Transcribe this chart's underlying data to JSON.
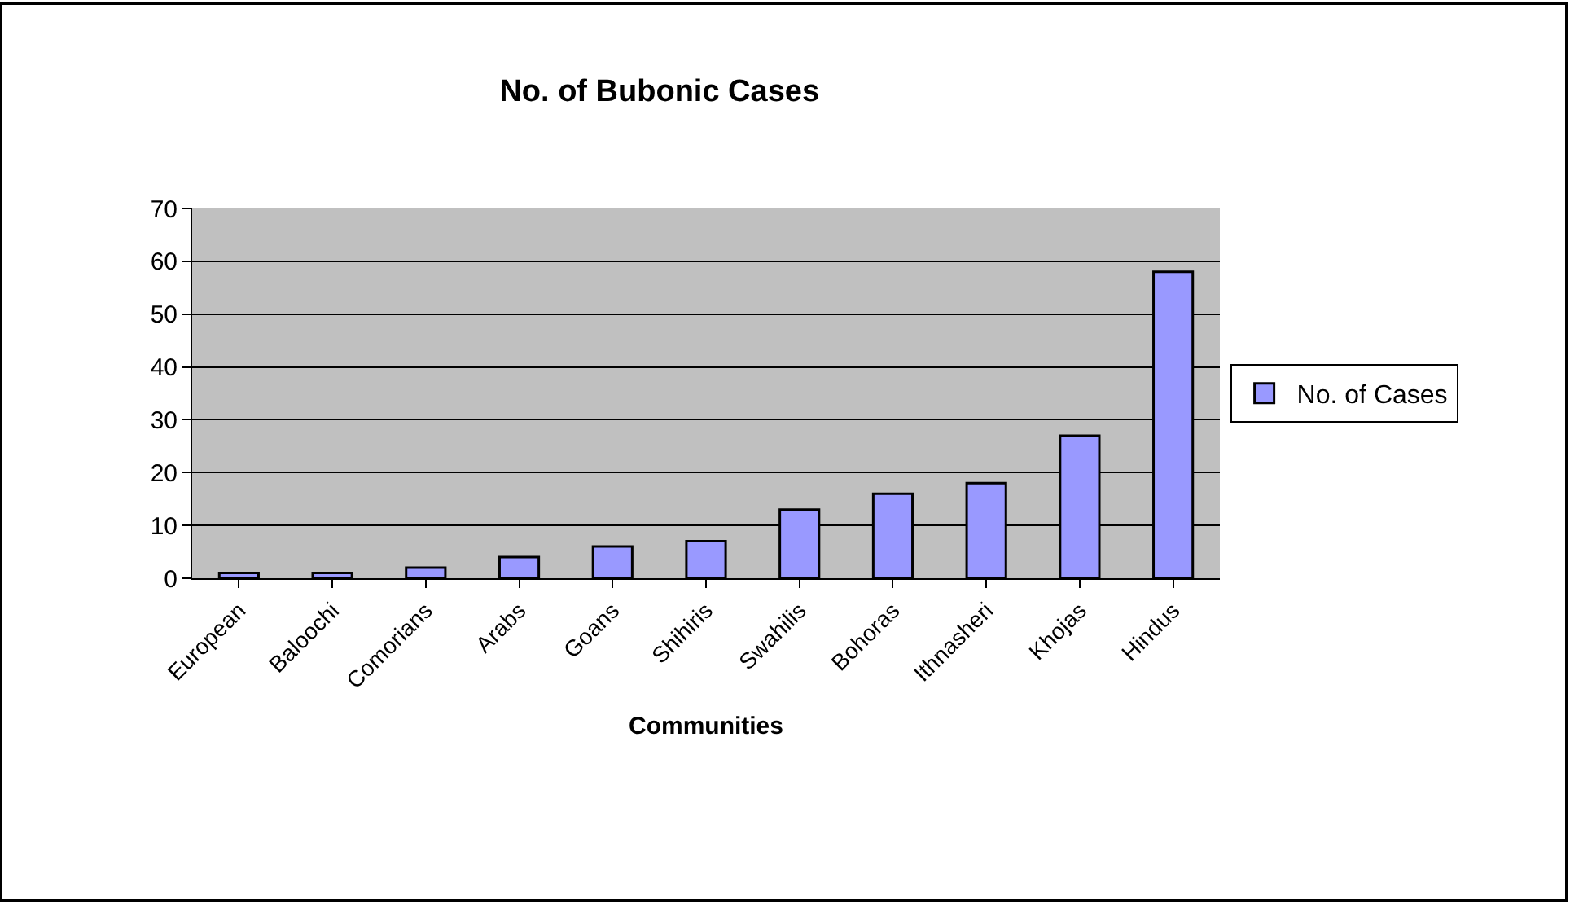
{
  "chart_data": {
    "type": "bar",
    "title": "No. of Bubonic Cases",
    "xlabel": "Communities",
    "categories": [
      "European",
      "Baloochi",
      "Comorians",
      "Arabs",
      "Goans",
      "Shihiris",
      "Swahilis",
      "Bohoras",
      "Ithnasheri",
      "Khojas",
      "Hindus"
    ],
    "series": [
      {
        "name": "No. of Cases",
        "color": "#9999ff",
        "values": [
          1,
          1,
          2,
          4,
          6,
          7,
          13,
          16,
          18,
          27,
          58
        ]
      }
    ],
    "ylim": [
      0,
      70
    ],
    "yticks": [
      0,
      10,
      20,
      30,
      40,
      50,
      60,
      70
    ],
    "grid": "y",
    "legend": "right"
  }
}
